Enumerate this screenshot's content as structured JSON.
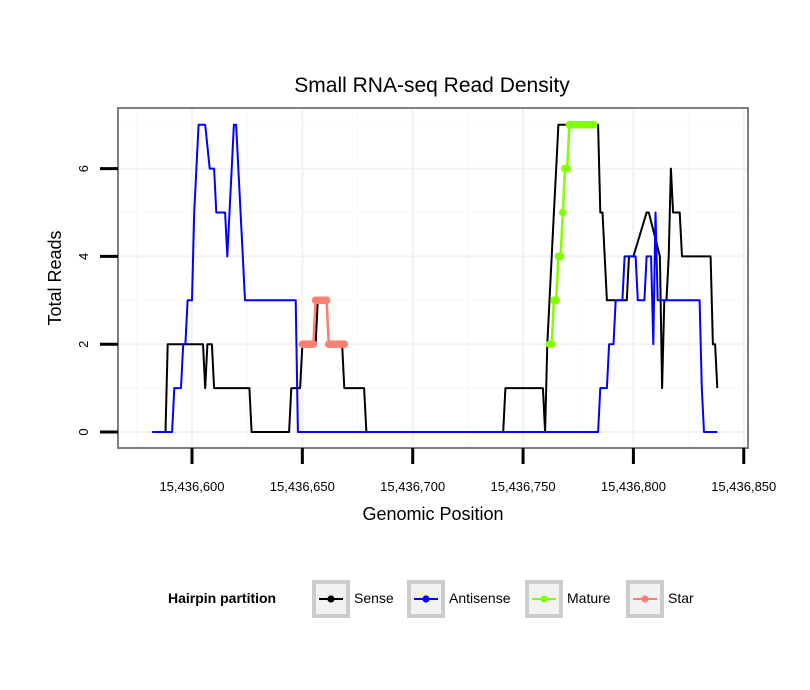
{
  "chart_data": {
    "type": "line",
    "title": "Small RNA-seq Read Density",
    "xlabel": "Genomic Position",
    "ylabel": "Total Reads",
    "xlim": [
      15436570,
      15436850
    ],
    "ylim": [
      -0.3,
      7.3
    ],
    "x_ticks": [
      15436600,
      15436650,
      15436700,
      15436750,
      15436800,
      15436850
    ],
    "x_tick_labels": [
      "15,436,600",
      "15,436,650",
      "15,436,700",
      "15,436,750",
      "15,436,800",
      "15,436,850"
    ],
    "y_ticks": [
      0,
      2,
      4,
      6
    ],
    "y_tick_labels": [
      "0",
      "2",
      "4",
      "6"
    ],
    "grid": true,
    "legend": {
      "title": "Hairpin partition",
      "position": "bottom",
      "entries": [
        "Sense",
        "Antisense",
        "Mature",
        "Star"
      ]
    },
    "series": [
      {
        "name": "Sense",
        "color": "#000000",
        "style": "step-line",
        "x": [
          15436582,
          15436588,
          15436589,
          15436605,
          15436606,
          15436607,
          15436609,
          15436610,
          15436626,
          15436627,
          15436644,
          15436645,
          15436649,
          15436650,
          15436651,
          15436652,
          15436654,
          15436655,
          15436656,
          15436657,
          15436658,
          15436659,
          15436660,
          15436661,
          15436662,
          15436663,
          15436664,
          15436665,
          15436666,
          15436667,
          15436668,
          15436669,
          15436670,
          15436671,
          15436674,
          15436675,
          15436678,
          15436679,
          15436741,
          15436742,
          15436759,
          15436760,
          15436761,
          15436762,
          15436763,
          15436764,
          15436765,
          15436766,
          15436767,
          15436768,
          15436769,
          15436770,
          15436771,
          15436772,
          15436784,
          15436785,
          15436786,
          15436787,
          15436788,
          15436789,
          15436790,
          15436797,
          15436798,
          15436799,
          15436800,
          15436806,
          15436807,
          15436812,
          15436813,
          15436814,
          15436815,
          15436816,
          15436817,
          15436818,
          15436819,
          15436820,
          15436821,
          15436822,
          15436826,
          15436827,
          15436834,
          15436835,
          15436836,
          15436837,
          15436838
        ],
        "y": [
          0,
          0,
          2,
          2,
          1,
          2,
          2,
          1,
          1,
          0,
          0,
          1,
          1,
          2,
          2,
          2,
          2,
          2,
          2,
          3,
          3,
          3,
          3,
          3,
          2,
          2,
          2,
          2,
          2,
          2,
          2,
          1,
          1,
          1,
          1,
          1,
          1,
          0,
          0,
          1,
          1,
          0,
          2,
          3,
          4,
          5,
          6,
          7,
          7,
          7,
          7,
          7,
          7,
          7,
          7,
          5,
          5,
          4,
          3,
          3,
          3,
          3,
          4,
          4,
          4,
          5,
          5,
          4,
          1,
          3,
          3,
          4,
          6,
          5,
          5,
          5,
          5,
          4,
          4,
          4,
          4,
          4,
          2,
          2,
          1
        ]
      },
      {
        "name": "Antisense",
        "color": "#0000ff",
        "style": "step-line",
        "x": [
          15436582,
          15436591,
          15436592,
          15436595,
          15436596,
          15436597,
          15436598,
          15436599,
          15436600,
          15436601,
          15436602,
          15436603,
          15436604,
          15436605,
          15436606,
          15436608,
          15436609,
          15436610,
          15436611,
          15436612,
          15436615,
          15436616,
          15436619,
          15436620,
          15436623,
          15436624,
          15436625,
          15436626,
          15436627,
          15436628,
          15436629,
          15436630,
          15436647,
          15436648,
          15436784,
          15436785,
          15436788,
          15436789,
          15436791,
          15436792,
          15436795,
          15436796,
          15436797,
          15436798,
          15436800,
          15436801,
          15436802,
          15436805,
          15436806,
          15436808,
          15436809,
          15436810,
          15436811,
          15436812,
          15436813,
          15436815,
          15436816,
          15436830,
          15436831,
          15436832,
          15436838
        ],
        "y": [
          0,
          0,
          1,
          1,
          2,
          2,
          3,
          3,
          3,
          5,
          6,
          7,
          7,
          7,
          7,
          6,
          6,
          6,
          5,
          5,
          5,
          4,
          7,
          7,
          4,
          3,
          3,
          3,
          3,
          3,
          3,
          3,
          3,
          0,
          0,
          1,
          1,
          2,
          2,
          3,
          3,
          4,
          4,
          4,
          4,
          4,
          3,
          3,
          4,
          4,
          2,
          5,
          3,
          3,
          3,
          3,
          3,
          3,
          1,
          0,
          0
        ]
      },
      {
        "name": "Mature",
        "color": "#7fff00",
        "style": "points-line",
        "x": [
          15436762,
          15436763,
          15436764,
          15436765,
          15436766,
          15436767,
          15436768,
          15436769,
          15436770,
          15436771,
          15436772,
          15436773,
          15436774,
          15436775,
          15436776,
          15436777,
          15436778,
          15436779,
          15436780,
          15436781,
          15436782
        ],
        "y": [
          2,
          2,
          3,
          3,
          4,
          4,
          5,
          6,
          6,
          7,
          7,
          7,
          7,
          7,
          7,
          7,
          7,
          7,
          7,
          7,
          7
        ]
      },
      {
        "name": "Star",
        "color": "#fa8072",
        "style": "points-line",
        "x": [
          15436650,
          15436651,
          15436652,
          15436653,
          15436654,
          15436655,
          15436656,
          15436657,
          15436658,
          15436659,
          15436660,
          15436661,
          15436662,
          15436663,
          15436664,
          15436665,
          15436666,
          15436667,
          15436668,
          15436669
        ],
        "y": [
          2,
          2,
          2,
          2,
          2,
          2,
          3,
          3,
          3,
          3,
          3,
          3,
          2,
          2,
          2,
          2,
          2,
          2,
          2,
          2
        ]
      }
    ]
  }
}
